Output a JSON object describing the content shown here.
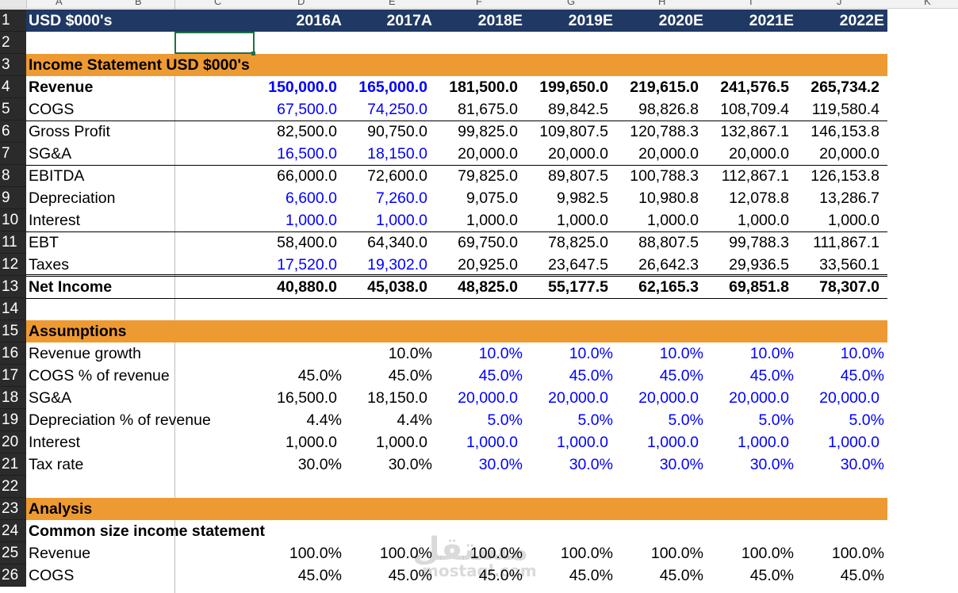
{
  "column_letters": [
    "A",
    "B",
    "C",
    "D",
    "E",
    "F",
    "G",
    "H",
    "I",
    "J",
    "K"
  ],
  "header": {
    "row": "1",
    "label": "USD $000's",
    "years": [
      "2016A",
      "2017A",
      "2018E",
      "2019E",
      "2020E",
      "2021E",
      "2022E"
    ]
  },
  "rows": [
    {
      "n": "2",
      "label": ""
    },
    {
      "n": "3",
      "label": "Income Statement USD $000's"
    },
    {
      "n": "4",
      "label": "Revenue",
      "values": [
        "150,000.0",
        "165,000.0",
        "181,500.0",
        "199,650.0",
        "219,615.0",
        "241,576.5",
        "265,734.2"
      ]
    },
    {
      "n": "5",
      "label": "COGS",
      "values": [
        "67,500.0",
        "74,250.0",
        "81,675.0",
        "89,842.5",
        "98,826.8",
        "108,709.4",
        "119,580.4"
      ]
    },
    {
      "n": "6",
      "label": "Gross Profit",
      "values": [
        "82,500.0",
        "90,750.0",
        "99,825.0",
        "109,807.5",
        "120,788.3",
        "132,867.1",
        "146,153.8"
      ]
    },
    {
      "n": "7",
      "label": "SG&A",
      "values": [
        "16,500.0",
        "18,150.0",
        "20,000.0",
        "20,000.0",
        "20,000.0",
        "20,000.0",
        "20,000.0"
      ]
    },
    {
      "n": "8",
      "label": "EBITDA",
      "values": [
        "66,000.0",
        "72,600.0",
        "79,825.0",
        "89,807.5",
        "100,788.3",
        "112,867.1",
        "126,153.8"
      ]
    },
    {
      "n": "9",
      "label": "Depreciation",
      "values": [
        "6,600.0",
        "7,260.0",
        "9,075.0",
        "9,982.5",
        "10,980.8",
        "12,078.8",
        "13,286.7"
      ]
    },
    {
      "n": "10",
      "label": "Interest",
      "values": [
        "1,000.0",
        "1,000.0",
        "1,000.0",
        "1,000.0",
        "1,000.0",
        "1,000.0",
        "1,000.0"
      ]
    },
    {
      "n": "11",
      "label": "EBT",
      "values": [
        "58,400.0",
        "64,340.0",
        "69,750.0",
        "78,825.0",
        "88,807.5",
        "99,788.3",
        "111,867.1"
      ]
    },
    {
      "n": "12",
      "label": "Taxes",
      "values": [
        "17,520.0",
        "19,302.0",
        "20,925.0",
        "23,647.5",
        "26,642.3",
        "29,936.5",
        "33,560.1"
      ]
    },
    {
      "n": "13",
      "label": "Net Income",
      "values": [
        "40,880.0",
        "45,038.0",
        "48,825.0",
        "55,177.5",
        "62,165.3",
        "69,851.8",
        "78,307.0"
      ]
    },
    {
      "n": "14",
      "label": ""
    },
    {
      "n": "15",
      "label": "Assumptions"
    },
    {
      "n": "16",
      "label": "Revenue growth",
      "values": [
        "",
        "10.0%",
        "10.0%",
        "10.0%",
        "10.0%",
        "10.0%",
        "10.0%"
      ]
    },
    {
      "n": "17",
      "label": "COGS % of revenue",
      "values": [
        "45.0%",
        "45.0%",
        "45.0%",
        "45.0%",
        "45.0%",
        "45.0%",
        "45.0%"
      ]
    },
    {
      "n": "18",
      "label": "SG&A",
      "values": [
        "16,500.0",
        "18,150.0",
        "20,000.0",
        "20,000.0",
        "20,000.0",
        "20,000.0",
        "20,000.0"
      ]
    },
    {
      "n": "19",
      "label": "Depreciation % of revenue",
      "values": [
        "4.4%",
        "4.4%",
        "5.0%",
        "5.0%",
        "5.0%",
        "5.0%",
        "5.0%"
      ]
    },
    {
      "n": "20",
      "label": "Interest",
      "values": [
        "1,000.0",
        "1,000.0",
        "1,000.0",
        "1,000.0",
        "1,000.0",
        "1,000.0",
        "1,000.0"
      ]
    },
    {
      "n": "21",
      "label": "Tax rate",
      "values": [
        "30.0%",
        "30.0%",
        "30.0%",
        "30.0%",
        "30.0%",
        "30.0%",
        "30.0%"
      ]
    },
    {
      "n": "22",
      "label": ""
    },
    {
      "n": "23",
      "label": "Analysis"
    },
    {
      "n": "24",
      "label": "Common size income statement"
    },
    {
      "n": "25",
      "label": "Revenue",
      "values": [
        "100.0%",
        "100.0%",
        "100.0%",
        "100.0%",
        "100.0%",
        "100.0%",
        "100.0%"
      ]
    },
    {
      "n": "26",
      "label": "COGS",
      "values": [
        "45.0%",
        "45.0%",
        "45.0%",
        "45.0%",
        "45.0%",
        "45.0%",
        "45.0%"
      ]
    }
  ],
  "colors": {
    "header_band": "#1f3864",
    "section_band": "#ee9a32",
    "input_blue": "#0000ff",
    "row_number_bg": "#2b2b2b",
    "selection": "#1e7145"
  },
  "watermark": {
    "arabic": "مستقل",
    "latin": "mostaql.com"
  }
}
